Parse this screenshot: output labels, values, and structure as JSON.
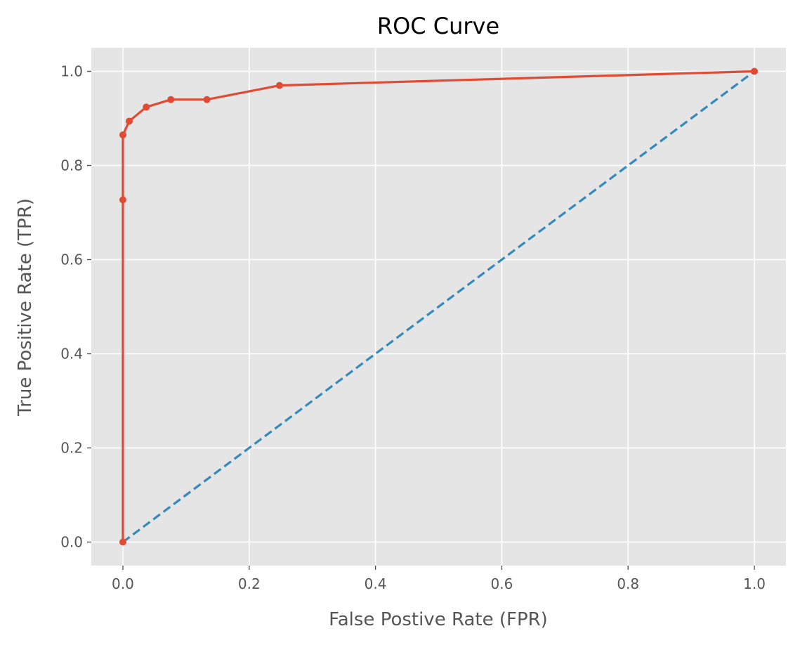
{
  "chart_data": {
    "type": "line",
    "title": "ROC Curve",
    "xlabel": "False Postive Rate (FPR)",
    "ylabel": "True Positive Rate (TPR)",
    "xlim": [
      -0.05,
      1.05
    ],
    "ylim": [
      -0.05,
      1.05
    ],
    "xticks": [
      0.0,
      0.2,
      0.4,
      0.6,
      0.8,
      1.0
    ],
    "yticks": [
      0.0,
      0.2,
      0.4,
      0.6,
      0.8,
      1.0
    ],
    "xtick_labels": [
      "0.0",
      "0.2",
      "0.4",
      "0.6",
      "0.8",
      "1.0"
    ],
    "ytick_labels": [
      "0.0",
      "0.2",
      "0.4",
      "0.6",
      "0.8",
      "1.0"
    ],
    "grid": true,
    "legend": "none",
    "series": [
      {
        "style": "solid line with markers",
        "color": "#E24A33",
        "x": [
          0.0,
          0.0,
          0.0,
          0.01,
          0.037,
          0.076,
          0.133,
          0.248,
          1.0
        ],
        "y": [
          0.0,
          0.727,
          0.865,
          0.894,
          0.924,
          0.94,
          0.94,
          0.97,
          1.0
        ]
      },
      {
        "style": "dashed line",
        "color": "#348ABD",
        "x": [
          0.0,
          1.0
        ],
        "y": [
          0.0,
          1.0
        ]
      }
    ],
    "background_color": "#E5E5E5",
    "grid_color": "#FFFFFF"
  }
}
